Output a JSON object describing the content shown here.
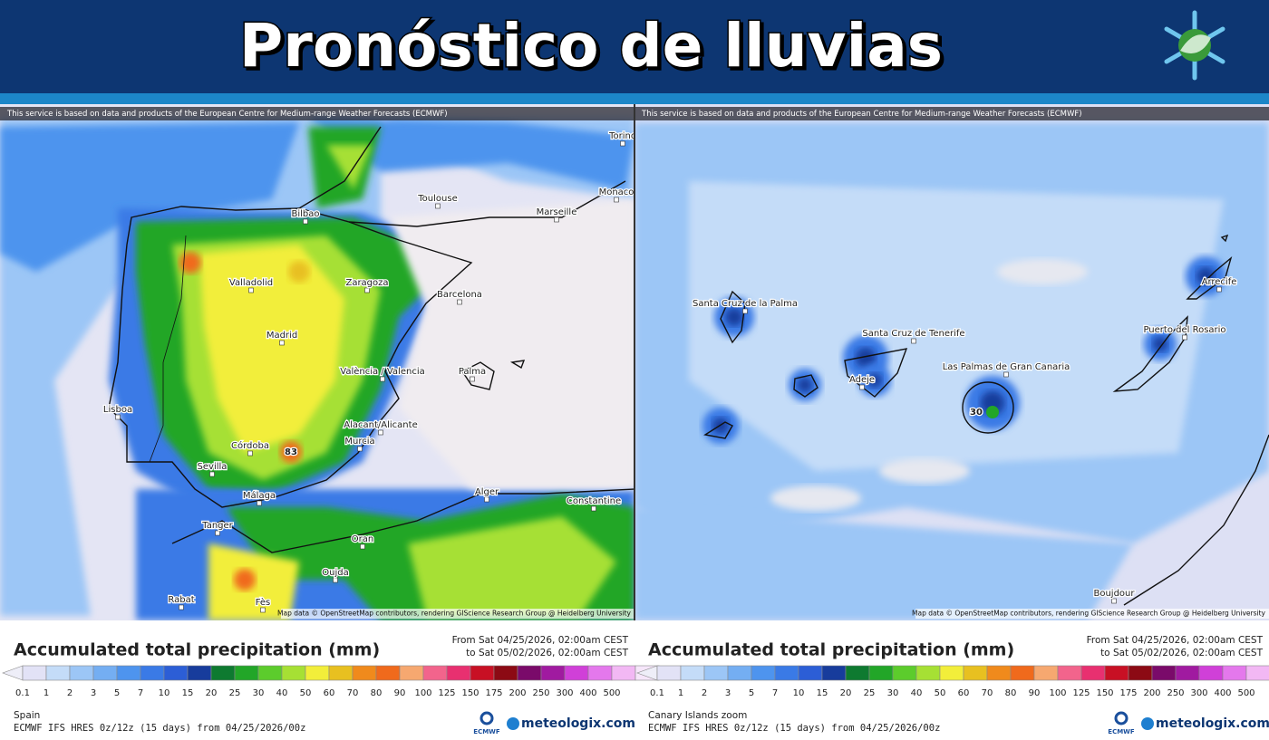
{
  "header": {
    "title": "Pronóstico de lluvias"
  },
  "legend": {
    "scale": [
      "0.1",
      "1",
      "2",
      "3",
      "5",
      "7",
      "10",
      "15",
      "20",
      "25",
      "30",
      "40",
      "50",
      "60",
      "70",
      "80",
      "90",
      "100",
      "125",
      "150",
      "175",
      "200",
      "250",
      "300",
      "400",
      "500"
    ],
    "colors": [
      "#eeeef8",
      "#e2e2f6",
      "#c4dcf8",
      "#9cc6f6",
      "#74aef2",
      "#4e94ee",
      "#3a7ae6",
      "#2c5ed6",
      "#173c9c",
      "#0e7a30",
      "#22a628",
      "#5ccc2c",
      "#a6e034",
      "#f2ee3a",
      "#e8c020",
      "#f08a1c",
      "#f06a1c",
      "#f6a870",
      "#f2648c",
      "#e83070",
      "#c81024",
      "#8c0a14",
      "#7a0a6a",
      "#a01aa0",
      "#d040d8",
      "#e478ec",
      "#f2b8f4",
      "#f6e6fa",
      "#c8c8c8"
    ]
  },
  "panels": [
    {
      "attribution": "This service is based on data and products of the European Centre for Medium-range Weather Forecasts (ECMWF)",
      "map_credit": "Map data © OpenStreetMap contributors, rendering GIScience Research Group @ Heidelberg University",
      "legend_title": "Accumulated total precipitation (mm)",
      "from": "From Sat 04/25/2026, 02:00am CEST",
      "to": "to Sat 05/02/2026, 02:00am CEST",
      "region": "Spain",
      "model": "ECMWF IFS HRES 0z/12z (15 days) from 04/25/2026/00z",
      "logo_ecmwf": "ECMWF",
      "logo_site": "meteologix.com",
      "places": [
        "Bilbao",
        "Toulouse",
        "Marseille",
        "Monaco",
        "Torino",
        "Valladolid",
        "Zaragoza",
        "Barcelona",
        "Madrid",
        "València / Valencia",
        "Palma",
        "Lisboa",
        "Alacant/Alicante",
        "Murcia",
        "Córdoba",
        "Sevilla",
        "Málaga",
        "Alger",
        "Constantine",
        "Tanger",
        "Oran",
        "Oujda",
        "Rabat",
        "Fès"
      ],
      "max_label": "83"
    },
    {
      "attribution": "This service is based on data and products of the European Centre for Medium-range Weather Forecasts (ECMWF)",
      "map_credit": "Map data © OpenStreetMap contributors, rendering GIScience Research Group @ Heidelberg University",
      "legend_title": "Accumulated total precipitation (mm)",
      "from": "From Sat 04/25/2026, 02:00am CEST",
      "to": "to Sat 05/02/2026, 02:00am CEST",
      "region": "Canary Islands zoom",
      "model": "ECMWF IFS HRES 0z/12z (15 days) from 04/25/2026/00z",
      "logo_ecmwf": "ECMWF",
      "logo_site": "meteologix.com",
      "places": [
        "Santa Cruz de la Palma",
        "Santa Cruz de Tenerife",
        "Adeje",
        "Las Palmas de Gran Canaria",
        "Arrecife",
        "Puerto del Rosario",
        "Boujdour"
      ],
      "max_label": "30"
    }
  ]
}
